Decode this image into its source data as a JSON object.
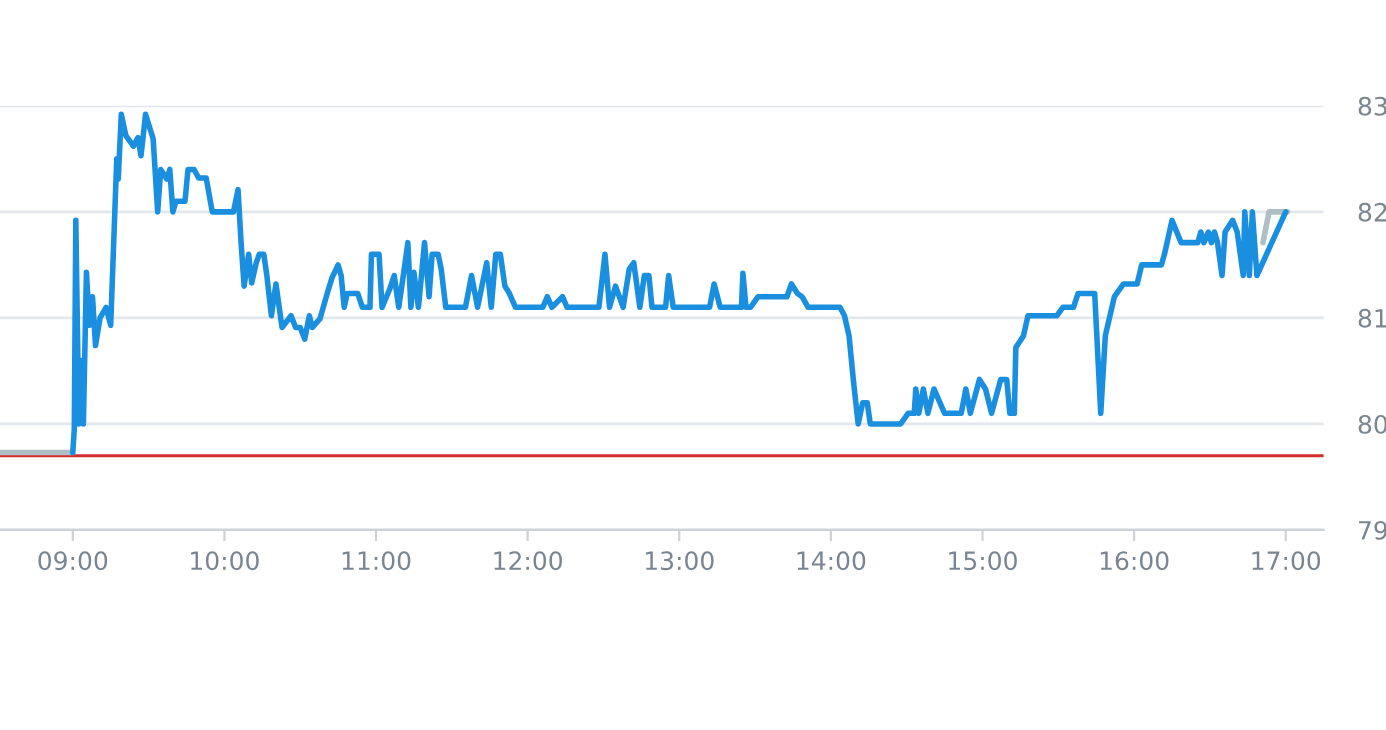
{
  "chart_data": {
    "type": "line",
    "series": [
      {
        "color": "#b0bec5",
        "x": [
          8.52,
          9.0
        ],
        "values": [
          79.73,
          79.73
        ]
      },
      {
        "color": "#b0bec5",
        "x": [
          16.85,
          16.89,
          17.01
        ],
        "values": [
          81.71,
          82.0,
          82.0
        ]
      },
      {
        "color": "#1a8fdf",
        "x": [
          9.0,
          9.01,
          9.02,
          9.04,
          9.05,
          9.07,
          9.09,
          9.11,
          9.13,
          9.15,
          9.18,
          9.22,
          9.25,
          9.29,
          9.3,
          9.32,
          9.35,
          9.4,
          9.43,
          9.45,
          9.48,
          9.53,
          9.56,
          9.58,
          9.62,
          9.64,
          9.66,
          9.68,
          9.74,
          9.76,
          9.8,
          9.83,
          9.88,
          9.92,
          10.06,
          10.09,
          10.11,
          10.13,
          10.16,
          10.18,
          10.21,
          10.23,
          10.26,
          10.28,
          10.31,
          10.34,
          10.38,
          10.44,
          10.47,
          10.5,
          10.53,
          10.56,
          10.58,
          10.63,
          10.68,
          10.71,
          10.75,
          10.77,
          10.79,
          10.81,
          10.88,
          10.91,
          10.96,
          10.97,
          11.02,
          11.04,
          11.09,
          11.12,
          11.15,
          11.18,
          11.21,
          11.23,
          11.25,
          11.28,
          11.32,
          11.35,
          11.37,
          11.41,
          11.43,
          11.46,
          11.59,
          11.63,
          11.67,
          11.73,
          11.76,
          11.79,
          11.82,
          11.85,
          11.88,
          11.92,
          12.1,
          12.13,
          12.16,
          12.23,
          12.26,
          12.47,
          12.51,
          12.54,
          12.58,
          12.63,
          12.67,
          12.7,
          12.74,
          12.77,
          12.8,
          12.82,
          12.91,
          12.93,
          12.96,
          13.2,
          13.23,
          13.27,
          13.41,
          13.42,
          13.44,
          13.47,
          13.52,
          13.71,
          13.74,
          13.78,
          13.81,
          13.85,
          14.06,
          14.09,
          14.12,
          14.15,
          14.18,
          14.21,
          14.24,
          14.26,
          14.46,
          14.51,
          14.55,
          14.56,
          14.58,
          14.61,
          14.64,
          14.68,
          14.75,
          14.86,
          14.89,
          14.92,
          14.98,
          15.02,
          15.06,
          15.12,
          15.16,
          15.18,
          15.21,
          15.22,
          15.27,
          15.3,
          15.49,
          15.53,
          15.6,
          15.63,
          15.74,
          15.78,
          15.81,
          15.87,
          15.93,
          16.02,
          16.05,
          16.18,
          16.2,
          16.25,
          16.31,
          16.42,
          16.44,
          16.46,
          16.49,
          16.51,
          16.53,
          16.55,
          16.58,
          16.6,
          16.65,
          16.68,
          16.72,
          16.73,
          16.76,
          16.78,
          16.81,
          17.0
        ],
        "values": [
          79.73,
          79.95,
          81.92,
          80.0,
          80.6,
          80.0,
          81.43,
          80.93,
          81.2,
          80.74,
          81.0,
          81.1,
          80.93,
          82.5,
          82.31,
          82.92,
          82.72,
          82.62,
          82.7,
          82.53,
          82.92,
          82.69,
          82.0,
          82.4,
          82.31,
          82.4,
          82.0,
          82.1,
          82.1,
          82.4,
          82.4,
          82.32,
          82.32,
          82.0,
          82.0,
          82.21,
          81.71,
          81.3,
          81.6,
          81.33,
          81.52,
          81.6,
          81.6,
          81.4,
          81.02,
          81.32,
          80.91,
          81.02,
          80.91,
          80.91,
          80.8,
          81.02,
          80.91,
          80.99,
          81.24,
          81.38,
          81.5,
          81.4,
          81.1,
          81.23,
          81.23,
          81.1,
          81.1,
          81.6,
          81.6,
          81.1,
          81.27,
          81.4,
          81.1,
          81.4,
          81.71,
          81.1,
          81.43,
          81.1,
          81.71,
          81.2,
          81.6,
          81.6,
          81.46,
          81.1,
          81.1,
          81.4,
          81.1,
          81.52,
          81.1,
          81.6,
          81.6,
          81.3,
          81.23,
          81.1,
          81.1,
          81.2,
          81.1,
          81.2,
          81.1,
          81.1,
          81.6,
          81.1,
          81.3,
          81.1,
          81.46,
          81.52,
          81.1,
          81.4,
          81.4,
          81.1,
          81.1,
          81.4,
          81.1,
          81.1,
          81.32,
          81.1,
          81.1,
          81.42,
          81.1,
          81.1,
          81.2,
          81.2,
          81.32,
          81.23,
          81.2,
          81.1,
          81.1,
          81.02,
          80.83,
          80.39,
          80.0,
          80.2,
          80.2,
          80.0,
          80.0,
          80.1,
          80.1,
          80.33,
          80.1,
          80.33,
          80.1,
          80.33,
          80.1,
          80.1,
          80.33,
          80.1,
          80.42,
          80.33,
          80.1,
          80.42,
          80.42,
          80.1,
          80.1,
          80.72,
          80.83,
          81.02,
          81.02,
          81.1,
          81.1,
          81.23,
          81.23,
          80.1,
          80.83,
          81.2,
          81.32,
          81.32,
          81.5,
          81.5,
          81.6,
          81.92,
          81.71,
          81.71,
          81.81,
          81.71,
          81.81,
          81.71,
          81.81,
          81.71,
          81.4,
          81.81,
          81.92,
          81.81,
          81.4,
          82.0,
          81.4,
          82.0,
          81.4,
          82.0
        ]
      }
    ],
    "ref_lines": [
      {
        "axis": "y",
        "value": 79.7,
        "color": "#d32f2f"
      }
    ],
    "xlim": [
      8.52,
      17.25
    ],
    "ylim": [
      79,
      83
    ],
    "xticks": [
      {
        "value": 9,
        "label": "09:00"
      },
      {
        "value": 10,
        "label": "10:00"
      },
      {
        "value": 11,
        "label": "11:00"
      },
      {
        "value": 12,
        "label": "12:00"
      },
      {
        "value": 13,
        "label": "13:00"
      },
      {
        "value": 14,
        "label": "14:00"
      },
      {
        "value": 15,
        "label": "15:00"
      },
      {
        "value": 16,
        "label": "16:00"
      },
      {
        "value": 17,
        "label": "17:00"
      }
    ],
    "yticks": [
      79,
      80,
      81,
      82,
      83
    ],
    "grid": "y",
    "line_style": "solid"
  }
}
